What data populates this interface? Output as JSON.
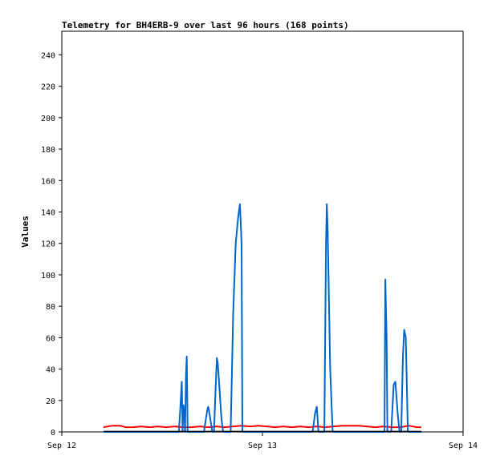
{
  "chart_data": {
    "type": "line",
    "title": "Telemetry for BH4ERB-9 over last 96 hours (168 points)",
    "xlabel": "",
    "ylabel": "Values",
    "x_ticks": [
      "Sep 12",
      "Sep 13",
      "Sep 14"
    ],
    "x_tick_hours": [
      0,
      24,
      48
    ],
    "xlim_hours": [
      0,
      48
    ],
    "y_ticks": [
      0,
      20,
      40,
      60,
      80,
      100,
      120,
      140,
      160,
      180,
      200,
      220,
      240
    ],
    "ylim": [
      0,
      255
    ],
    "grid": false,
    "legend": "none",
    "series": [
      {
        "color": "#ff0000",
        "points": [
          [
            5.0,
            3
          ],
          [
            6.0,
            4
          ],
          [
            7.0,
            4
          ],
          [
            7.6,
            3
          ],
          [
            8.5,
            3
          ],
          [
            9.5,
            3.5
          ],
          [
            10.5,
            3
          ],
          [
            11.5,
            3.5
          ],
          [
            12.5,
            3
          ],
          [
            13.5,
            3.5
          ],
          [
            14.5,
            3
          ],
          [
            15.5,
            3
          ],
          [
            16.5,
            3.5
          ],
          [
            17.5,
            3
          ],
          [
            18.5,
            3.5
          ],
          [
            19.5,
            3
          ],
          [
            20.5,
            3.5
          ],
          [
            21.5,
            4
          ],
          [
            22.5,
            3.5
          ],
          [
            23.5,
            4
          ],
          [
            24.5,
            3.5
          ],
          [
            25.5,
            3
          ],
          [
            26.5,
            3.5
          ],
          [
            27.5,
            3
          ],
          [
            28.5,
            3.5
          ],
          [
            29.5,
            3
          ],
          [
            30.5,
            3.5
          ],
          [
            31.5,
            3
          ],
          [
            32.5,
            3.5
          ],
          [
            33.5,
            4
          ],
          [
            34.5,
            4
          ],
          [
            35.5,
            4
          ],
          [
            36.5,
            3.5
          ],
          [
            37.5,
            3
          ],
          [
            38.5,
            3.5
          ],
          [
            39.5,
            3
          ],
          [
            40.5,
            3
          ],
          [
            41.5,
            4
          ],
          [
            42.5,
            3
          ],
          [
            43.0,
            3
          ]
        ]
      },
      {
        "color": "#0066cc",
        "points": [
          [
            5.0,
            0
          ],
          [
            14.0,
            0
          ],
          [
            14.2,
            17
          ],
          [
            14.3,
            28
          ],
          [
            14.35,
            32
          ],
          [
            14.45,
            0
          ],
          [
            14.55,
            17
          ],
          [
            14.65,
            12
          ],
          [
            14.75,
            0
          ],
          [
            14.85,
            36
          ],
          [
            14.95,
            48
          ],
          [
            15.05,
            0
          ],
          [
            15.3,
            0
          ],
          [
            17.0,
            0
          ],
          [
            17.4,
            14
          ],
          [
            17.5,
            16
          ],
          [
            17.6,
            14
          ],
          [
            18.0,
            0
          ],
          [
            18.2,
            0
          ],
          [
            18.45,
            35
          ],
          [
            18.55,
            47
          ],
          [
            18.65,
            44
          ],
          [
            19.1,
            8
          ],
          [
            19.3,
            0
          ],
          [
            20.2,
            0
          ],
          [
            20.5,
            75
          ],
          [
            20.8,
            120
          ],
          [
            21.1,
            137
          ],
          [
            21.3,
            145
          ],
          [
            21.5,
            120
          ],
          [
            21.6,
            0
          ],
          [
            30.0,
            0
          ],
          [
            30.3,
            12
          ],
          [
            30.5,
            16
          ],
          [
            30.7,
            0
          ],
          [
            31.4,
            0
          ],
          [
            31.6,
            120
          ],
          [
            31.7,
            145
          ],
          [
            31.8,
            128
          ],
          [
            32.1,
            40
          ],
          [
            32.4,
            0
          ],
          [
            38.6,
            0
          ],
          [
            38.7,
            97
          ],
          [
            38.85,
            60
          ],
          [
            38.95,
            0
          ],
          [
            39.4,
            0
          ],
          [
            39.7,
            30
          ],
          [
            39.9,
            32
          ],
          [
            40.2,
            10
          ],
          [
            40.4,
            0
          ],
          [
            40.6,
            0
          ],
          [
            40.8,
            48
          ],
          [
            40.95,
            65
          ],
          [
            41.15,
            60
          ],
          [
            41.4,
            0
          ],
          [
            43.0,
            0
          ]
        ]
      },
      {
        "color": "#000000",
        "points": [
          [
            5.0,
            0.3
          ],
          [
            43.0,
            0.3
          ]
        ]
      }
    ]
  }
}
